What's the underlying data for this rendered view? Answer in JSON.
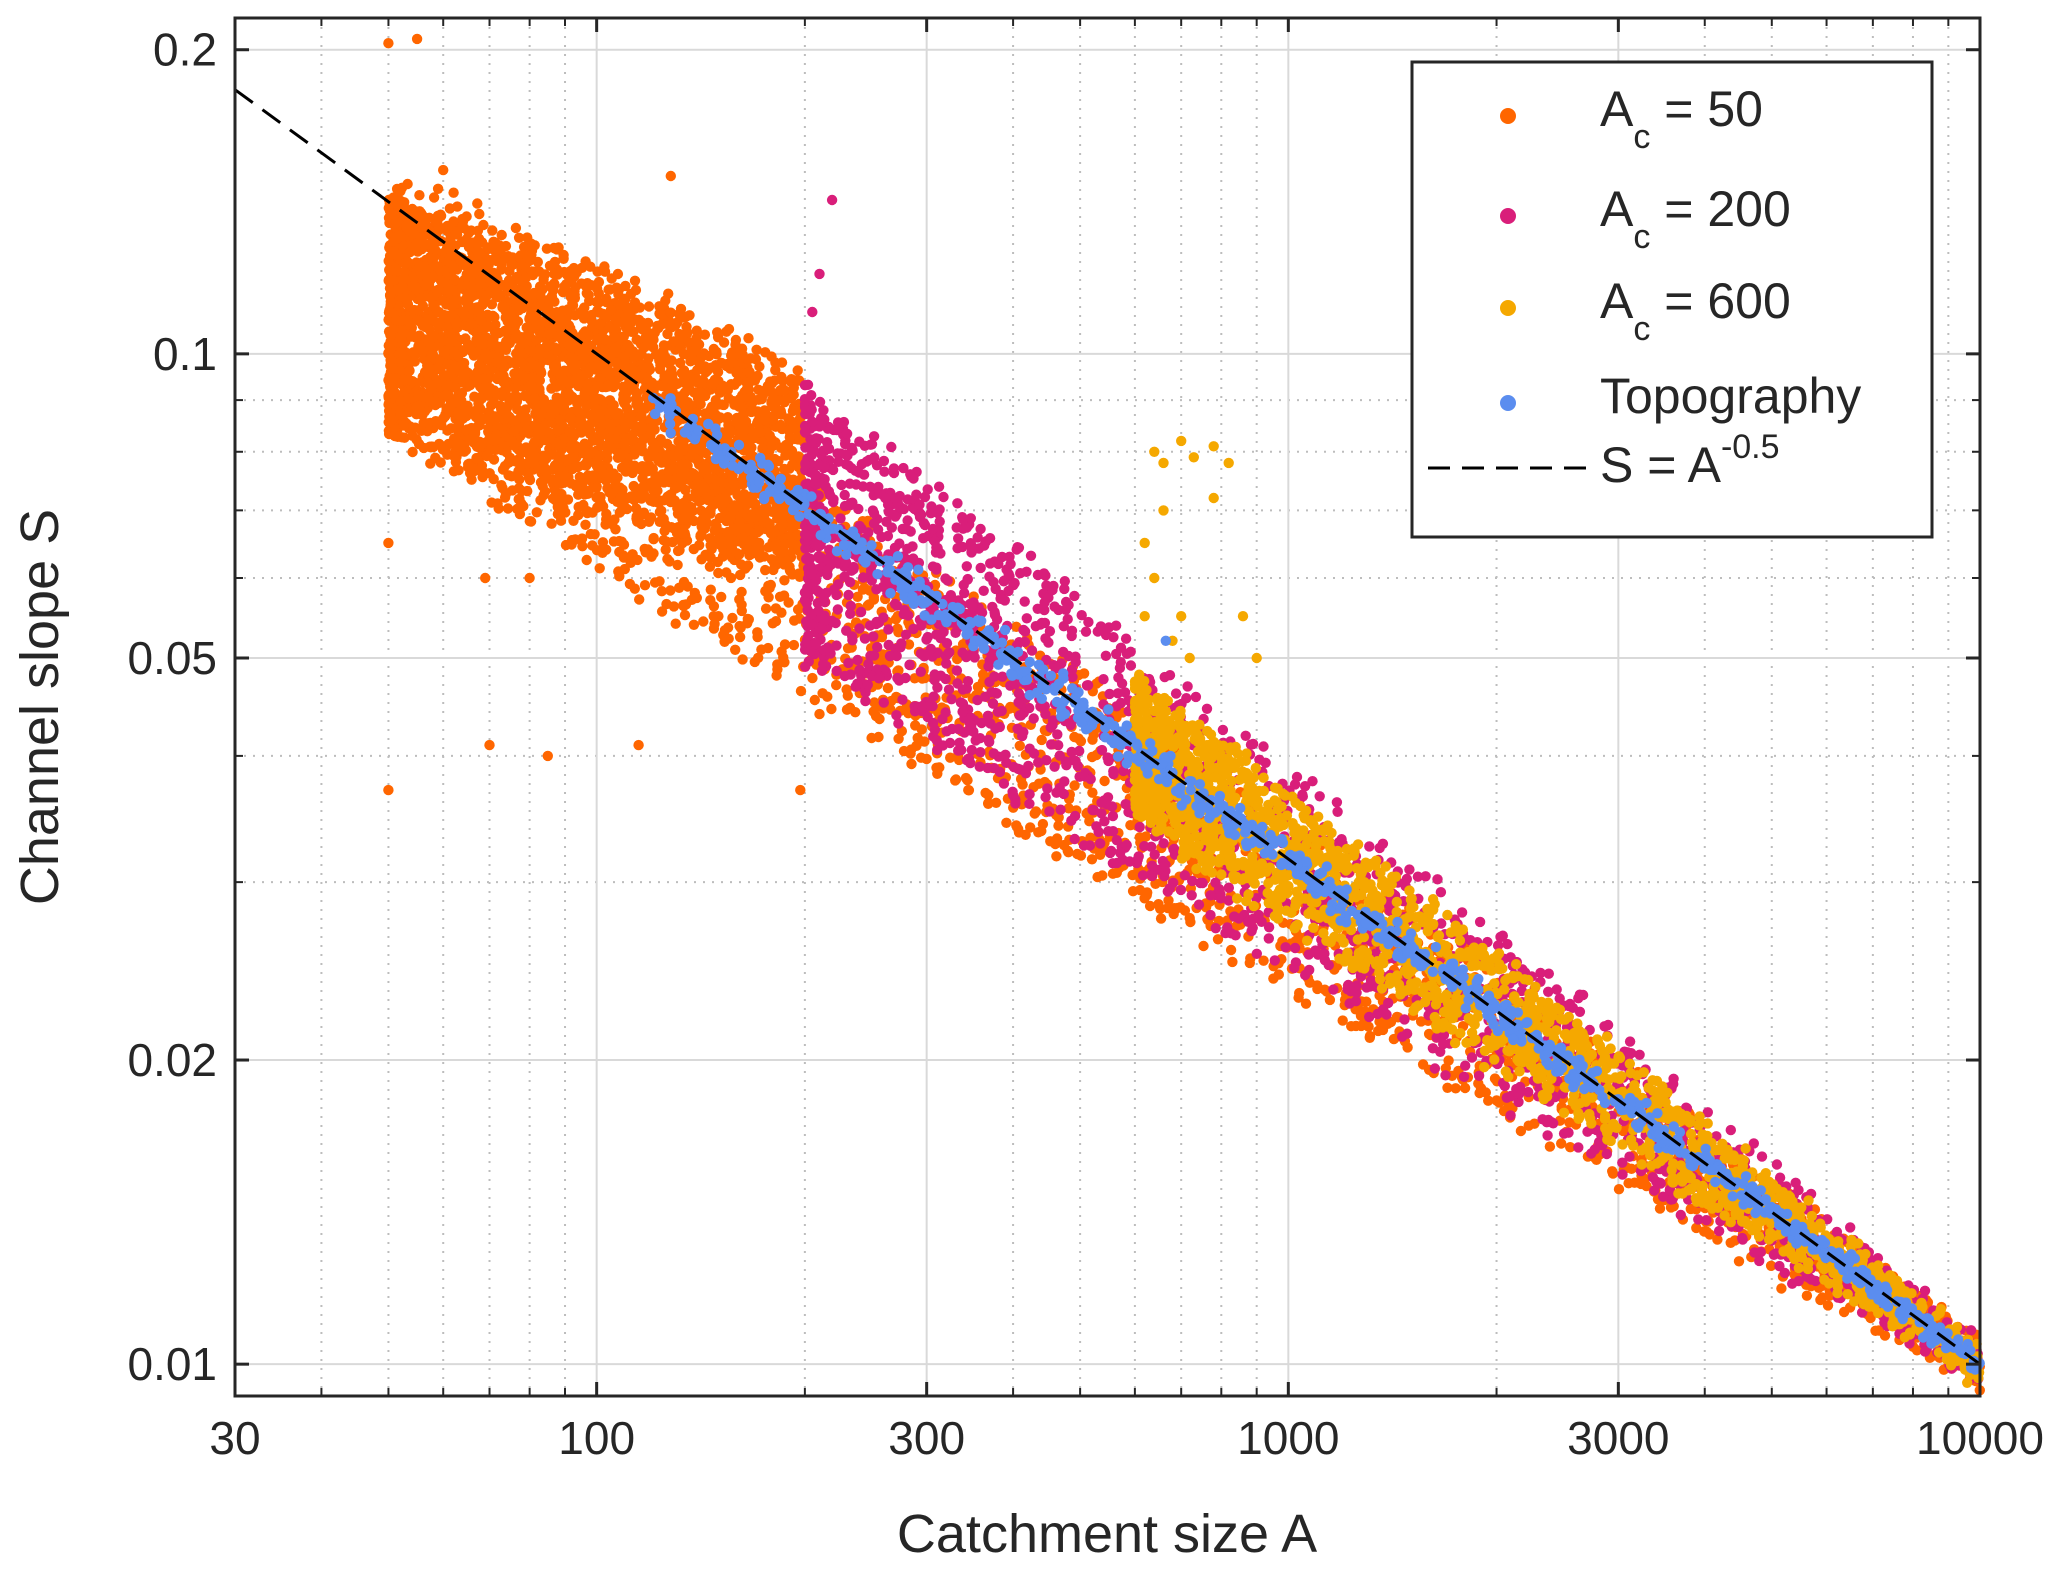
{
  "chart_data": {
    "type": "scatter",
    "xscale": "log",
    "yscale": "log",
    "xlabel": "Catchment size A",
    "ylabel": "Channel slope S",
    "xlim": [
      30,
      10000
    ],
    "ylim": [
      0.0093,
      0.215
    ],
    "xticks": [
      30,
      100,
      300,
      1000,
      3000,
      10000
    ],
    "xtick_labels": [
      "30",
      "100",
      "300",
      "1000",
      "3000",
      "10000"
    ],
    "yticks": [
      0.01,
      0.02,
      0.05,
      0.1,
      0.2
    ],
    "ytick_labels": [
      "0.01",
      "0.02",
      "0.05",
      "0.1",
      "0.2"
    ],
    "grid": true,
    "minor_grid": true,
    "legend_position": "top-right",
    "series": [
      {
        "name": "A = 50",
        "legend_main": "A",
        "legend_sub": "c",
        "legend_rest": " = 50",
        "color": "#FF6600",
        "kind": "scatter",
        "range_A": [
          50,
          10000
        ],
        "band_start": [
          50,
          0.084,
          0.145
        ],
        "band_end": [
          200,
          0.06,
          0.093
        ],
        "spread_factor_at_1000": 1.25,
        "outliers": [
          [
            50,
            0.203
          ],
          [
            55,
            0.205
          ],
          [
            50,
            0.037
          ],
          [
            50,
            0.065
          ],
          [
            60,
            0.152
          ],
          [
            70,
            0.041
          ],
          [
            85,
            0.04
          ],
          [
            115,
            0.041
          ],
          [
            69,
            0.06
          ],
          [
            80,
            0.06
          ],
          [
            128,
            0.15
          ],
          [
            197,
            0.037
          ],
          [
            210,
            0.044
          ],
          [
            222,
            0.047
          ]
        ]
      },
      {
        "name": "A = 200",
        "legend_main": "A",
        "legend_sub": "c",
        "legend_rest": " = 200",
        "color": "#D91E7A",
        "kind": "scatter",
        "range_A": [
          200,
          10000
        ],
        "band_start": [
          200,
          0.05,
          0.093
        ],
        "spread_factor_at_1000": 1.2,
        "outliers": [
          [
            219,
            0.142
          ],
          [
            210,
            0.12
          ],
          [
            205,
            0.11
          ]
        ]
      },
      {
        "name": "A = 600",
        "legend_main": "A",
        "legend_sub": "c",
        "legend_rest": " = 600",
        "color": "#F5A800",
        "kind": "scatter",
        "range_A": [
          600,
          10000
        ],
        "band_start": [
          600,
          0.035,
          0.048
        ],
        "spread_factor_at_1000": 1.12,
        "outliers": [
          [
            640,
            0.08
          ],
          [
            660,
            0.078
          ],
          [
            700,
            0.082
          ],
          [
            730,
            0.079
          ],
          [
            780,
            0.081
          ],
          [
            820,
            0.078
          ],
          [
            780,
            0.072
          ],
          [
            660,
            0.07
          ],
          [
            620,
            0.065
          ],
          [
            640,
            0.06
          ],
          [
            620,
            0.055
          ],
          [
            700,
            0.055
          ],
          [
            680,
            0.052
          ],
          [
            720,
            0.05
          ],
          [
            860,
            0.055
          ],
          [
            900,
            0.05
          ]
        ]
      },
      {
        "name": "Topography",
        "legend_main": "Topography",
        "legend_sub": "",
        "legend_rest": "",
        "color": "#5B8DEF",
        "kind": "scatter",
        "range_A": [
          120,
          10000
        ],
        "band_start": [
          120,
          0.088,
          0.093
        ],
        "spread_factor_at_1000": 1.04,
        "outliers": [
          [
            665,
            0.052
          ]
        ]
      },
      {
        "name": "S = A^-0.5",
        "legend_main": "S = A",
        "legend_sub": "",
        "legend_sup": "-0.5",
        "legend_rest": "",
        "color": "#000000",
        "kind": "line",
        "exponent": -0.5,
        "x": [
          30,
          10000
        ],
        "y": [
          0.1826,
          0.01
        ]
      }
    ]
  }
}
